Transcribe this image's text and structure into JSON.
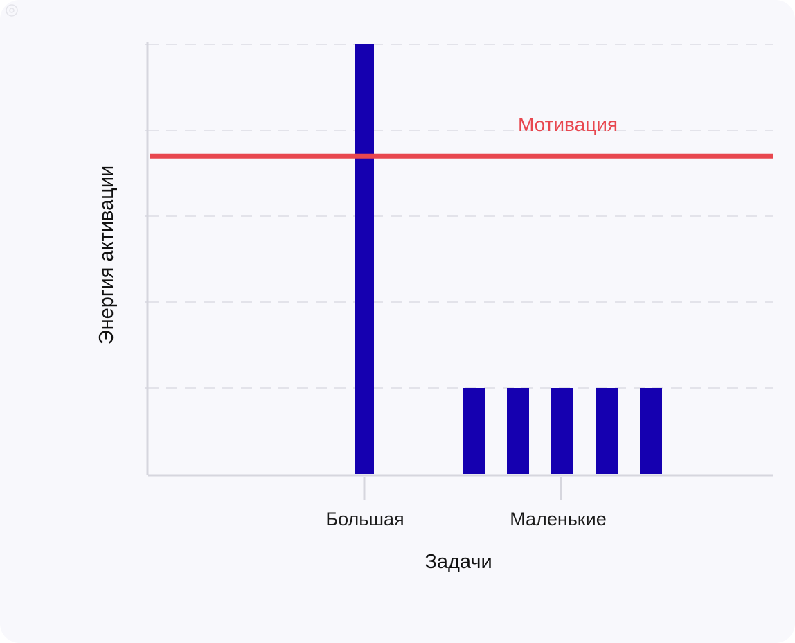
{
  "chart_data": {
    "type": "bar",
    "title": "",
    "xlabel": "Задачи",
    "ylabel": "Энергия активации",
    "categories": [
      "Большая",
      "Маленькие"
    ],
    "bars": [
      {
        "category": "Большая",
        "value": 5
      },
      {
        "category": "Маленькие",
        "value": 1
      },
      {
        "category": "Маленькие",
        "value": 1
      },
      {
        "category": "Маленькие",
        "value": 1
      },
      {
        "category": "Маленькие",
        "value": 1
      },
      {
        "category": "Маленькие",
        "value": 1
      }
    ],
    "ylim": [
      0,
      5
    ],
    "y_gridlines": [
      1,
      2,
      3,
      4,
      5
    ],
    "grid": true,
    "reference_line": {
      "label": "Мотивация",
      "value": 3.7,
      "color": "#e8474f"
    },
    "bar_color": "#1500b0",
    "axis_color": "#d6d6de",
    "grid_color": "#dcdce4"
  },
  "icons": {
    "corner": "corner-logo-icon"
  }
}
